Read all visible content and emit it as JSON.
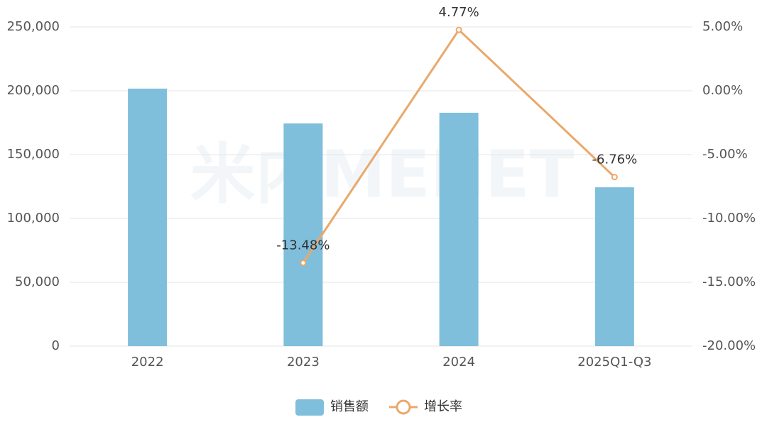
{
  "chart_data": {
    "type": "bar-line",
    "watermark": "米内MENET",
    "categories": [
      "2022",
      "2023",
      "2024",
      "2025Q1-Q3"
    ],
    "series": [
      {
        "name": "销售额",
        "type": "bar",
        "color": "#7fbfdc",
        "values": [
          201700,
          174400,
          182800,
          124400
        ]
      },
      {
        "name": "增长率",
        "type": "line",
        "axis": "y2",
        "color": "#eaa86b",
        "values": [
          null,
          -13.48,
          4.77,
          -6.76
        ],
        "value_labels": [
          null,
          "-13.48%",
          "4.77%",
          "-6.76%"
        ]
      }
    ],
    "ylim": [
      0,
      250000
    ],
    "yticks": [
      0,
      {
        "value": 50000,
        "label": "50,000"
      },
      {
        "value": 100000,
        "label": "100,000"
      },
      {
        "value": 150000,
        "label": "150,000"
      },
      {
        "value": 200000,
        "label": "200,000"
      },
      {
        "value": 250000,
        "label": "250,000"
      }
    ],
    "y2lim": [
      -20,
      5
    ],
    "y2ticks": [
      {
        "value": -20,
        "label": "-20.00%"
      },
      {
        "value": -15,
        "label": "-15.00%"
      },
      {
        "value": -10,
        "label": "-10.00%"
      },
      {
        "value": -5,
        "label": "-5.00%"
      },
      {
        "value": 0,
        "label": "0.00%"
      },
      {
        "value": 5,
        "label": "5.00%"
      }
    ],
    "grid": true,
    "legend": "bottom"
  }
}
